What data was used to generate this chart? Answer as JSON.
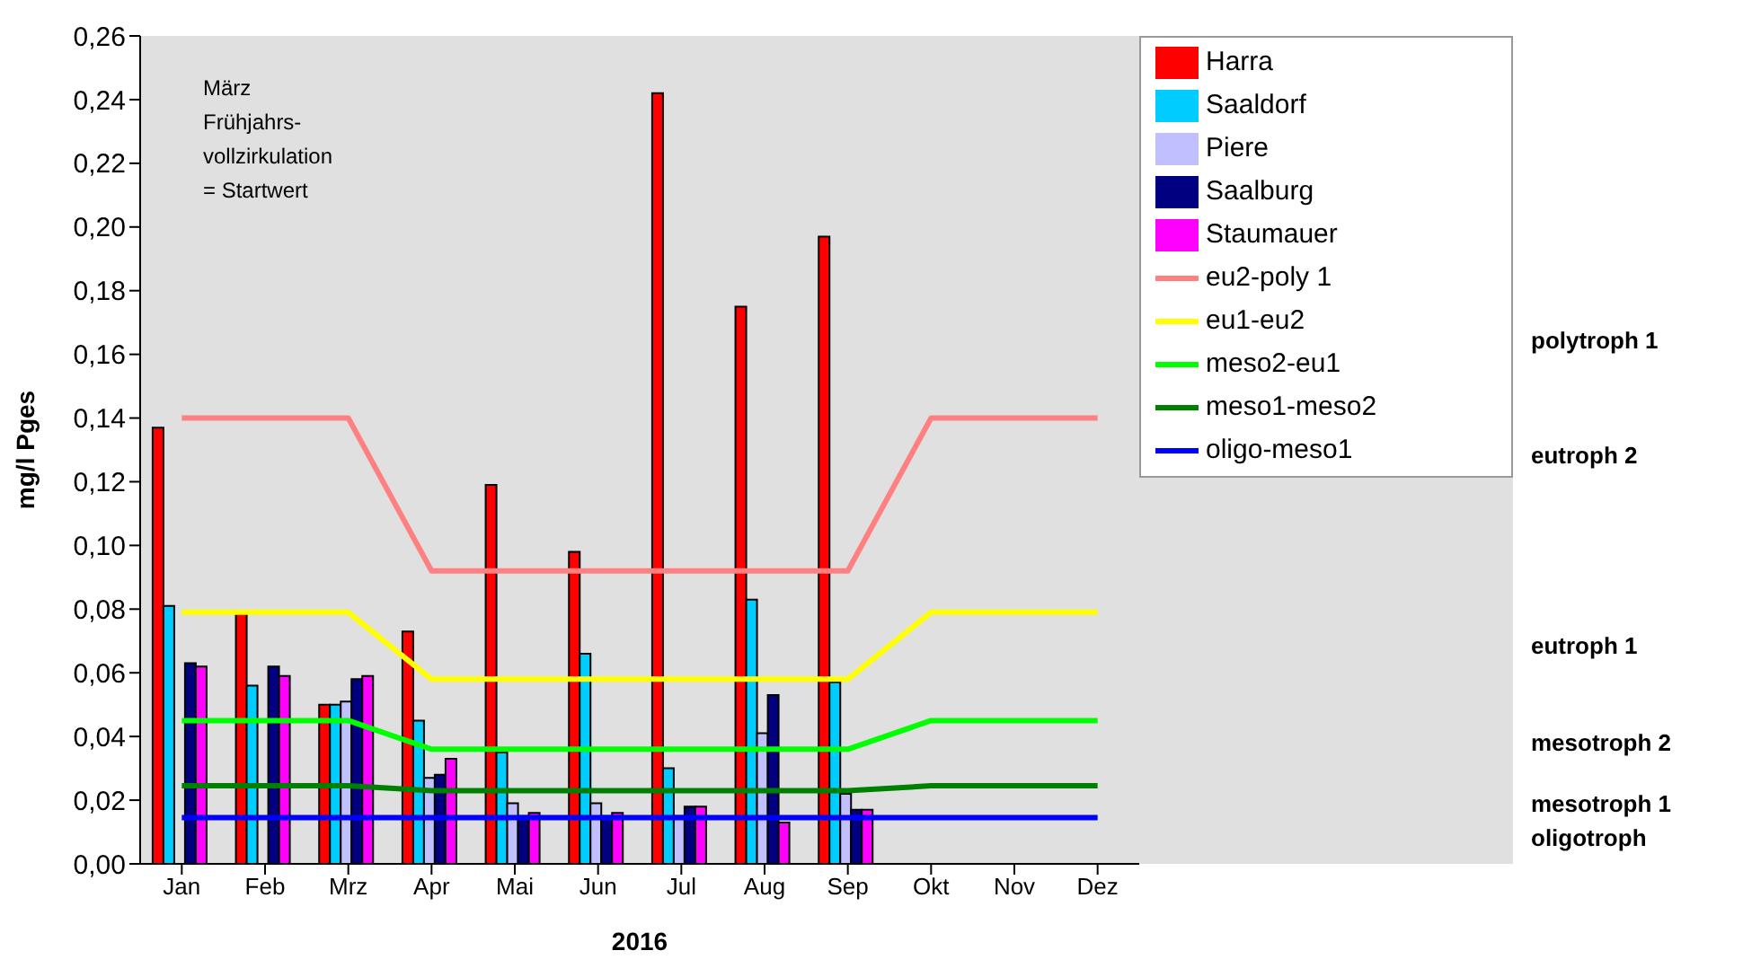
{
  "chart_data": {
    "type": "bar",
    "xlabel": "2016",
    "ylabel": "mg/l Pges",
    "categories": [
      "Jan",
      "Feb",
      "Mrz",
      "Apr",
      "Mai",
      "Jun",
      "Jul",
      "Aug",
      "Sep",
      "Okt",
      "Nov",
      "Dez"
    ],
    "series": [
      {
        "name": "Harra",
        "color": "#ff0000",
        "values": [
          0.137,
          0.079,
          0.05,
          0.073,
          0.119,
          0.098,
          0.242,
          0.175,
          0.197,
          null,
          null,
          null
        ]
      },
      {
        "name": "Saaldorf",
        "color": "#00ccff",
        "values": [
          0.081,
          0.056,
          0.05,
          0.045,
          0.035,
          0.066,
          0.03,
          0.083,
          0.057,
          null,
          null,
          null
        ]
      },
      {
        "name": "Piere",
        "color": "#c0c0ff",
        "values": [
          null,
          null,
          0.051,
          0.027,
          0.019,
          0.019,
          0.015,
          0.041,
          0.022,
          null,
          null,
          null
        ]
      },
      {
        "name": "Saalburg",
        "color": "#000080",
        "values": [
          0.063,
          0.062,
          0.058,
          0.028,
          0.015,
          0.015,
          0.018,
          0.053,
          0.017,
          null,
          null,
          null
        ]
      },
      {
        "name": "Staumauer",
        "color": "#ff00ff",
        "values": [
          0.062,
          0.059,
          0.059,
          0.033,
          0.016,
          0.016,
          0.018,
          0.013,
          0.017,
          null,
          null,
          null
        ]
      },
      {
        "name": "eu2-poly 1",
        "type": "line",
        "color": "#ff8080",
        "values": [
          0.14,
          0.14,
          0.14,
          0.092,
          0.092,
          0.092,
          0.092,
          0.092,
          0.092,
          0.14,
          0.14,
          0.14
        ]
      },
      {
        "name": "eu1-eu2",
        "type": "line",
        "color": "#ffff00",
        "values": [
          0.079,
          0.079,
          0.079,
          0.058,
          0.058,
          0.058,
          0.058,
          0.058,
          0.058,
          0.079,
          0.079,
          0.079
        ]
      },
      {
        "name": "meso2-eu1",
        "type": "line",
        "color": "#00ff00",
        "values": [
          0.045,
          0.045,
          0.045,
          0.036,
          0.036,
          0.036,
          0.036,
          0.036,
          0.036,
          0.045,
          0.045,
          0.045
        ]
      },
      {
        "name": "meso1-meso2",
        "type": "line",
        "color": "#008000",
        "values": [
          0.0245,
          0.0245,
          0.0245,
          0.023,
          0.023,
          0.023,
          0.023,
          0.023,
          0.023,
          0.0245,
          0.0245,
          0.0245
        ]
      },
      {
        "name": "oligo-meso1",
        "type": "line",
        "color": "#0000ff",
        "values": [
          0.0145,
          0.0145,
          0.0145,
          0.0145,
          0.0145,
          0.0145,
          0.0145,
          0.0145,
          0.0145,
          0.0145,
          0.0145,
          0.0145
        ]
      }
    ],
    "ylim": [
      0,
      0.26
    ],
    "yticks": [
      {
        "value": 0,
        "label": "0,00"
      },
      {
        "value": 0.02,
        "label": "0,02"
      },
      {
        "value": 0.04,
        "label": "0,04"
      },
      {
        "value": 0.06,
        "label": "0,06"
      },
      {
        "value": 0.08,
        "label": "0,08"
      },
      {
        "value": 0.1,
        "label": "0,10"
      },
      {
        "value": 0.12,
        "label": "0,12"
      },
      {
        "value": 0.14,
        "label": "0,14"
      },
      {
        "value": 0.16,
        "label": "0,16"
      },
      {
        "value": 0.18,
        "label": "0,18"
      },
      {
        "value": 0.2,
        "label": "0,20"
      },
      {
        "value": 0.22,
        "label": "0,22"
      },
      {
        "value": 0.24,
        "label": "0,24"
      },
      {
        "value": 0.26,
        "label": "0,26"
      }
    ],
    "annotations": [
      "März\nFrühjahrs-\nvollzirkulation\n= Startwert",
      "polytroph 1",
      "eutroph 2",
      "eutroph 1",
      "mesotroph 2",
      "mesotroph 1",
      "oligotroph"
    ],
    "grid": false,
    "legend": "top right",
    "marker": "none",
    "line_style": "solid"
  }
}
